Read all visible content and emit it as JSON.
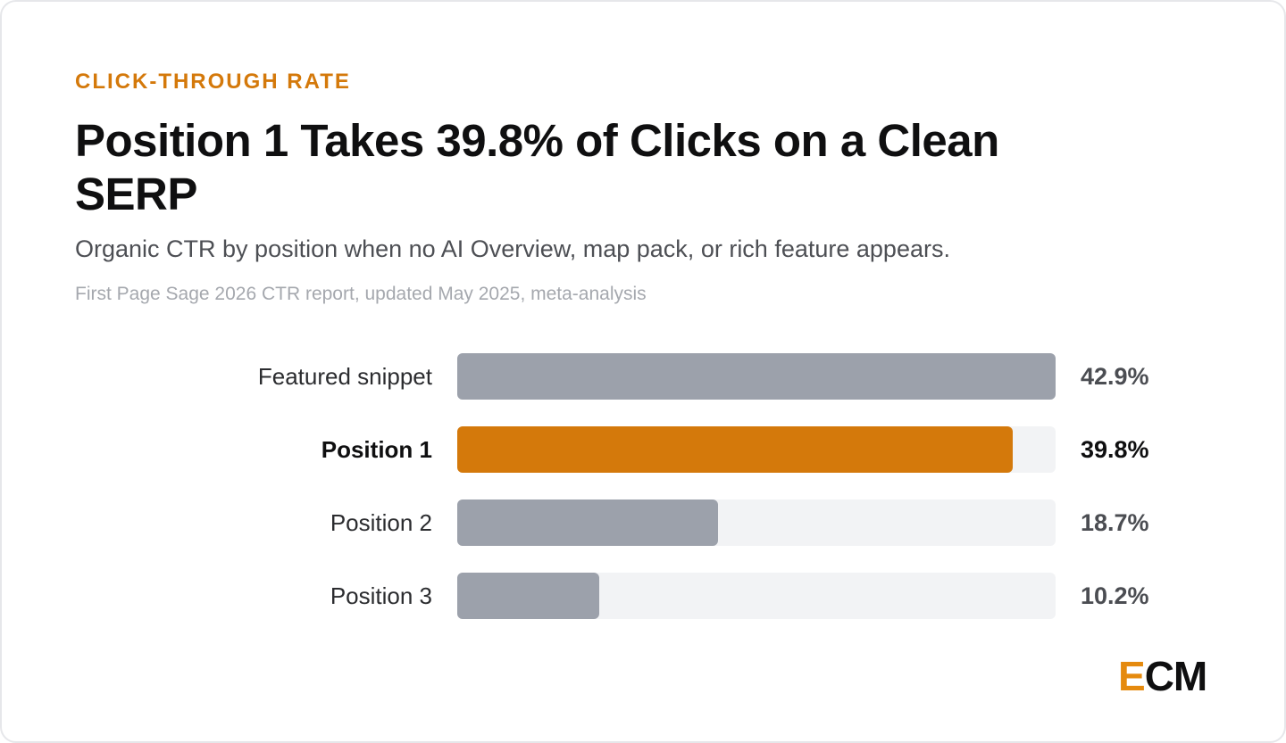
{
  "header": {
    "eyebrow": "CLICK-THROUGH RATE",
    "title": "Position 1 Takes 39.8% of Clicks on a Clean SERP",
    "subtitle": "Organic CTR by position when no AI Overview, map pack, or rich feature appears.",
    "source": "First Page Sage 2026 CTR report, updated May 2025, meta-analysis"
  },
  "chart_data": {
    "type": "bar",
    "orientation": "horizontal",
    "categories": [
      "Featured snippet",
      "Position 1",
      "Position 2",
      "Position 3"
    ],
    "values": [
      42.9,
      39.8,
      18.7,
      10.2
    ],
    "value_labels": [
      "42.9%",
      "39.8%",
      "18.7%",
      "10.2%"
    ],
    "highlight_index": 1,
    "xlim": [
      0,
      42.9
    ],
    "unit": "%",
    "colors": {
      "default_bar": "#9ca1ab",
      "highlight_bar": "#d4790b",
      "track": "#f2f3f5"
    }
  },
  "brand": {
    "logo_first": "E",
    "logo_rest": "CM",
    "accent_color": "#e58a0e"
  }
}
